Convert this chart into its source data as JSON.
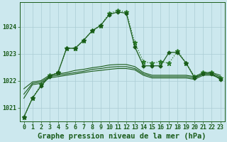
{
  "title": "Graphe pression niveau de la mer (hPa)",
  "background_color": "#cce8ee",
  "grid_color": "#aaccd4",
  "line_color_dark": "#1a5c1a",
  "line_color_med": "#2a7a2a",
  "x_labels": [
    "0",
    "1",
    "2",
    "3",
    "4",
    "5",
    "6",
    "7",
    "8",
    "9",
    "10",
    "11",
    "12",
    "13",
    "14",
    "15",
    "16",
    "17",
    "18",
    "19",
    "20",
    "21",
    "22",
    "23"
  ],
  "ylim": [
    1020.5,
    1024.9
  ],
  "yticks": [
    1021,
    1022,
    1023,
    1024
  ],
  "series": [
    {
      "name": "dotted_star_line",
      "x": [
        0,
        1,
        2,
        3,
        4,
        5,
        6,
        7,
        8,
        9,
        10,
        11,
        12,
        13,
        14,
        15,
        16,
        17,
        18,
        19,
        20,
        21,
        22,
        23
      ],
      "y": [
        1020.65,
        1021.35,
        1021.85,
        1022.2,
        1022.3,
        1023.2,
        1023.2,
        1023.5,
        1023.85,
        1024.05,
        1024.5,
        1024.6,
        1024.55,
        1023.4,
        1022.7,
        1022.65,
        1022.7,
        1022.65,
        1023.1,
        1022.65,
        1022.15,
        1022.3,
        1022.3,
        1022.1
      ],
      "linestyle": "dotted",
      "marker": "*",
      "color": "#2a7a2a",
      "linewidth": 0.9,
      "markersize": 4.5
    },
    {
      "name": "solid_diamond_line",
      "x": [
        0,
        1,
        2,
        3,
        4,
        5,
        6,
        7,
        8,
        9,
        10,
        11,
        12,
        13,
        14,
        15,
        16,
        17,
        18,
        19,
        20,
        21,
        22,
        23
      ],
      "y": [
        1020.65,
        1021.35,
        1021.8,
        1022.15,
        1022.3,
        1023.2,
        1023.2,
        1023.5,
        1023.85,
        1024.05,
        1024.45,
        1024.55,
        1024.5,
        1023.25,
        1022.55,
        1022.55,
        1022.55,
        1023.05,
        1023.05,
        1022.65,
        1022.1,
        1022.25,
        1022.25,
        1022.05
      ],
      "linestyle": "solid",
      "marker": "D",
      "color": "#1a5c1a",
      "linewidth": 0.9,
      "markersize": 2.5
    },
    {
      "name": "flat_line1",
      "x": [
        0,
        1,
        2,
        3,
        4,
        5,
        6,
        7,
        8,
        9,
        10,
        11,
        12,
        13,
        14,
        15,
        16,
        17,
        18,
        19,
        20,
        21,
        22,
        23
      ],
      "y": [
        1021.35,
        1021.85,
        1021.9,
        1022.1,
        1022.15,
        1022.2,
        1022.25,
        1022.3,
        1022.35,
        1022.38,
        1022.42,
        1022.45,
        1022.45,
        1022.4,
        1022.2,
        1022.1,
        1022.1,
        1022.1,
        1022.1,
        1022.1,
        1022.05,
        1022.2,
        1022.2,
        1022.1
      ],
      "linestyle": "solid",
      "marker": null,
      "color": "#1a5c1a",
      "linewidth": 0.8,
      "markersize": 0
    },
    {
      "name": "flat_line2",
      "x": [
        0,
        1,
        2,
        3,
        4,
        5,
        6,
        7,
        8,
        9,
        10,
        11,
        12,
        13,
        14,
        15,
        16,
        17,
        18,
        19,
        20,
        21,
        22,
        23
      ],
      "y": [
        1021.5,
        1021.9,
        1021.95,
        1022.15,
        1022.2,
        1022.25,
        1022.3,
        1022.35,
        1022.42,
        1022.45,
        1022.5,
        1022.52,
        1022.52,
        1022.45,
        1022.25,
        1022.15,
        1022.15,
        1022.15,
        1022.15,
        1022.15,
        1022.1,
        1022.25,
        1022.25,
        1022.15
      ],
      "linestyle": "solid",
      "marker": null,
      "color": "#1a5c1a",
      "linewidth": 0.8,
      "markersize": 0
    },
    {
      "name": "flat_line3",
      "x": [
        0,
        1,
        2,
        3,
        4,
        5,
        6,
        7,
        8,
        9,
        10,
        11,
        12,
        13,
        14,
        15,
        16,
        17,
        18,
        19,
        20,
        21,
        22,
        23
      ],
      "y": [
        1021.7,
        1021.95,
        1022.0,
        1022.2,
        1022.25,
        1022.3,
        1022.38,
        1022.42,
        1022.48,
        1022.52,
        1022.58,
        1022.6,
        1022.6,
        1022.52,
        1022.3,
        1022.2,
        1022.2,
        1022.2,
        1022.2,
        1022.2,
        1022.15,
        1022.3,
        1022.3,
        1022.2
      ],
      "linestyle": "solid",
      "marker": null,
      "color": "#1a5c1a",
      "linewidth": 0.8,
      "markersize": 0
    }
  ],
  "title_color": "#1a5c1a",
  "title_fontsize": 7.5,
  "tick_fontsize": 6,
  "tick_color": "#1a5c1a"
}
